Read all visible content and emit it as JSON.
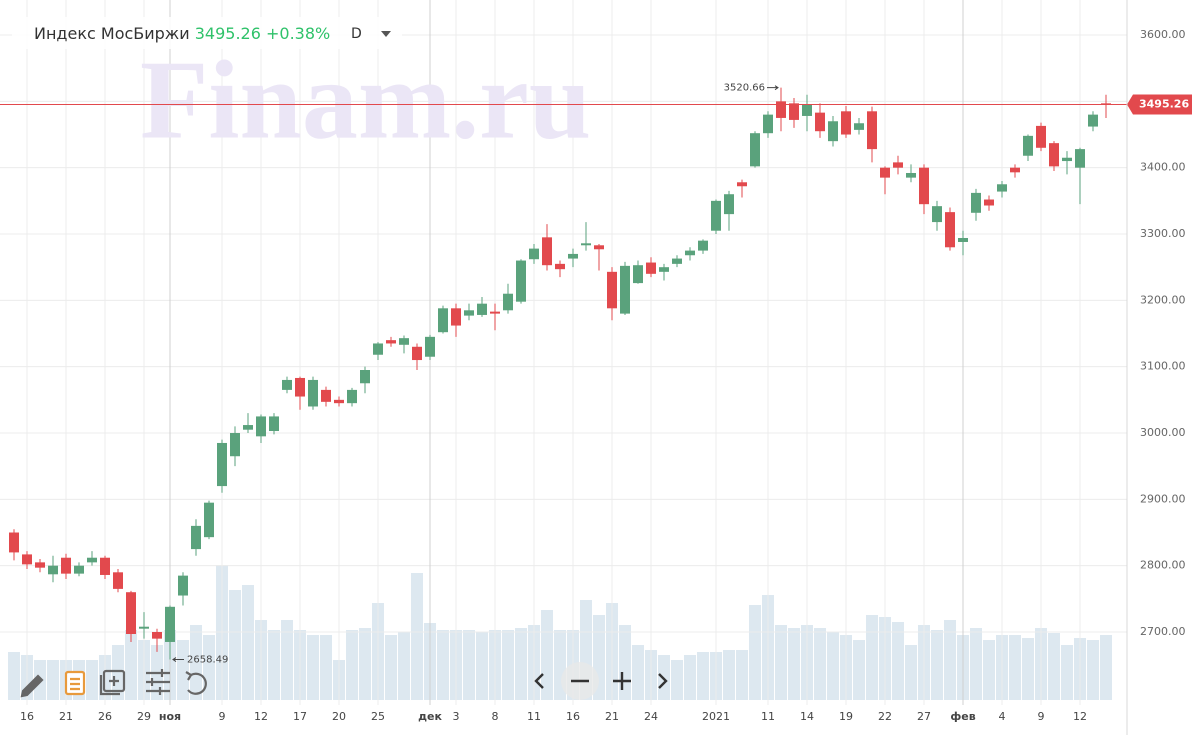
{
  "chart_data": {
    "type": "candlestick",
    "title": "Индекс МосБиржи",
    "price": "3495.26",
    "change": "+0.38%",
    "interval": "D",
    "watermark": "Finam.ru",
    "up_color": "#5aa27c",
    "down_color": "#e2494d",
    "volume_color": "#dde8f0",
    "categories": [
      null,
      "16",
      null,
      null,
      "21",
      null,
      null,
      "26",
      null,
      null,
      "29",
      null,
      "ноя",
      null,
      null,
      null,
      "9",
      null,
      null,
      "12",
      null,
      null,
      "17",
      null,
      null,
      "20",
      null,
      null,
      "25",
      null,
      null,
      null,
      "дек",
      null,
      "3",
      null,
      null,
      "8",
      null,
      null,
      "11",
      null,
      null,
      "16",
      null,
      null,
      "21",
      null,
      null,
      "24",
      null,
      null,
      null,
      null,
      "2021",
      null,
      null,
      null,
      "11",
      null,
      null,
      "14",
      null,
      null,
      "19",
      null,
      null,
      "22",
      null,
      null,
      "27",
      null,
      null,
      "фев",
      null,
      null,
      "4",
      null,
      null,
      "9",
      null,
      null,
      "12",
      null,
      null
    ],
    "open": [
      2850,
      2817,
      2805,
      2787,
      2812,
      2788,
      2805,
      2812,
      2790,
      2760,
      2705,
      2700,
      2685,
      2755,
      2825,
      2843,
      2920,
      2965,
      3005,
      2995,
      3003,
      3065,
      3083,
      3040,
      3065,
      3050,
      3045,
      3075,
      3118,
      3140,
      3133,
      3130,
      3115,
      3152,
      3188,
      3177,
      3178,
      3183,
      3185,
      3198,
      3262,
      3295,
      3255,
      3263,
      3283,
      3283,
      3243,
      3180,
      3226,
      3257,
      3243,
      3255,
      3268,
      3275,
      3305,
      3330,
      3378,
      3402,
      3452,
      3500,
      3497,
      3478,
      3483,
      3440,
      3485,
      3457,
      3485,
      3400,
      3408,
      3385,
      3400,
      3318,
      3333,
      3288,
      3332,
      3352,
      3364,
      3400,
      3418,
      3463,
      3437,
      3410,
      3400,
      3462,
      3497
    ],
    "high": [
      2855,
      2822,
      2810,
      2815,
      2818,
      2805,
      2822,
      2815,
      2795,
      2762,
      2730,
      2705,
      2740,
      2790,
      2870,
      2898,
      2990,
      3010,
      3030,
      3028,
      3030,
      3085,
      3085,
      3085,
      3070,
      3055,
      3068,
      3100,
      3137,
      3145,
      3147,
      3135,
      3148,
      3192,
      3195,
      3195,
      3205,
      3195,
      3225,
      3262,
      3285,
      3315,
      3260,
      3278,
      3318,
      3285,
      3250,
      3258,
      3260,
      3265,
      3255,
      3268,
      3280,
      3292,
      3352,
      3365,
      3382,
      3455,
      3485,
      3520.66,
      3505,
      3510,
      3497,
      3478,
      3493,
      3475,
      3492,
      3402,
      3418,
      3405,
      3405,
      3350,
      3340,
      3305,
      3368,
      3358,
      3380,
      3405,
      3450,
      3468,
      3440,
      3425,
      3430,
      3485,
      3510
    ],
    "low": [
      2808,
      2795,
      2790,
      2775,
      2780,
      2784,
      2800,
      2780,
      2760,
      2685,
      2690,
      2670,
      2658.49,
      2740,
      2815,
      2840,
      2910,
      2950,
      3000,
      2985,
      2998,
      3060,
      3035,
      3035,
      3040,
      3040,
      3040,
      3060,
      3110,
      3130,
      3120,
      3095,
      3110,
      3150,
      3145,
      3170,
      3175,
      3155,
      3180,
      3195,
      3255,
      3245,
      3235,
      3250,
      3275,
      3245,
      3170,
      3178,
      3225,
      3235,
      3230,
      3250,
      3260,
      3270,
      3300,
      3305,
      3355,
      3400,
      3445,
      3455,
      3460,
      3455,
      3445,
      3432,
      3445,
      3450,
      3408,
      3360,
      3390,
      3378,
      3330,
      3305,
      3275,
      3268,
      3320,
      3335,
      3355,
      3385,
      3410,
      3425,
      3395,
      3390,
      3345,
      3455,
      3475
    ],
    "close": [
      2820,
      2802,
      2797,
      2800,
      2788,
      2800,
      2812,
      2786,
      2765,
      2697,
      2708,
      2690,
      2738,
      2785,
      2860,
      2895,
      2985,
      3000,
      3012,
      3025,
      3025,
      3080,
      3055,
      3080,
      3047,
      3045,
      3065,
      3095,
      3135,
      3135,
      3143,
      3110,
      3145,
      3188,
      3162,
      3185,
      3195,
      3180,
      3210,
      3260,
      3278,
      3253,
      3247,
      3270,
      3286,
      3277,
      3188,
      3252,
      3253,
      3240,
      3250,
      3263,
      3275,
      3290,
      3350,
      3360,
      3372,
      3452,
      3480,
      3475,
      3472,
      3495,
      3455,
      3470,
      3450,
      3467,
      3428,
      3385,
      3400,
      3392,
      3345,
      3342,
      3280,
      3294,
      3362,
      3343,
      3375,
      3393,
      3448,
      3430,
      3402,
      3415,
      3428,
      3480,
      3495.26
    ],
    "volume": [
      48,
      45,
      40,
      40,
      40,
      40,
      40,
      45,
      55,
      70,
      60,
      55,
      70,
      60,
      75,
      65,
      135,
      110,
      115,
      80,
      70,
      80,
      70,
      65,
      65,
      40,
      70,
      72,
      97,
      65,
      68,
      127,
      77,
      70,
      70,
      70,
      68,
      70,
      70,
      72,
      75,
      90,
      70,
      70,
      100,
      85,
      97,
      75,
      55,
      50,
      45,
      40,
      45,
      48,
      48,
      50,
      50,
      95,
      105,
      75,
      72,
      75,
      72,
      68,
      65,
      60,
      85,
      83,
      78,
      55,
      75,
      70,
      80,
      65,
      72,
      60,
      65,
      65,
      62,
      72,
      67,
      55,
      62,
      60,
      65
    ],
    "volume_lim": [
      0,
      700
    ],
    "max_label": "3520.66",
    "min_label": "2658.49",
    "last_price": {
      "value": 3495.26,
      "label": "3495.26"
    },
    "ylim": [
      2597.5,
      3652.8
    ],
    "yticks": [
      {
        "value": 2700,
        "label": "2700.00"
      },
      {
        "value": 2800,
        "label": "2800.00"
      },
      {
        "value": 2900,
        "label": "2900.00"
      },
      {
        "value": 3000,
        "label": "3000.00"
      },
      {
        "value": 3100,
        "label": "3100.00"
      },
      {
        "value": 3200,
        "label": "3200.00"
      },
      {
        "value": 3300,
        "label": "3300.00"
      },
      {
        "value": 3400,
        "label": "3400.00"
      },
      {
        "value": 3500,
        "label": "3500.00"
      },
      {
        "value": 3600,
        "label": "3600.00"
      }
    ],
    "grid": true
  }
}
